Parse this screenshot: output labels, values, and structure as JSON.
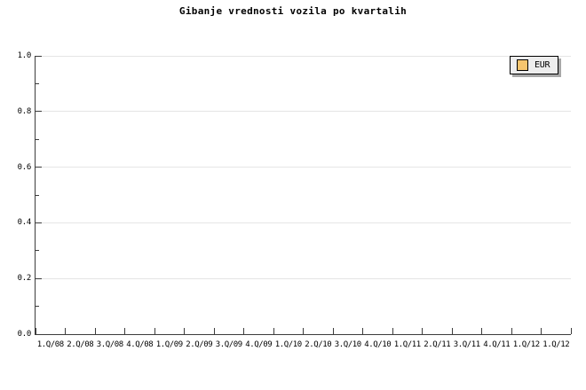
{
  "title": "Gibanje vrednosti vozila po kvartalih",
  "legend": {
    "label": "EUR",
    "swatch_color": "#f6c56e",
    "background": "#ededed",
    "shadow_color": "#a8a8a8",
    "position": "top-right"
  },
  "colors": {
    "background": "#ffffff",
    "axis": "#3c3c3c",
    "grid": "#e5e5e5",
    "text": "#000000"
  },
  "y_axis": {
    "min": 0,
    "max": 1,
    "major_step": 0.2,
    "minor_step": 0.1,
    "tick_labels": [
      "0.0",
      "0.2",
      "0.4",
      "0.6",
      "0.8",
      "1.0"
    ]
  },
  "x_axis": {
    "labels": [
      "1.Q/08",
      "2.Q/08",
      "3.Q/08",
      "4.Q/08",
      "1.Q/09",
      "2.Q/09",
      "3.Q/09",
      "4.Q/09",
      "1.Q/10",
      "2.Q/10",
      "3.Q/10",
      "4.Q/10",
      "1.Q/11",
      "2.Q/11",
      "3.Q/11",
      "4.Q/11",
      "1.Q/12",
      "1.Q/12"
    ]
  },
  "chart_data": {
    "type": "bar",
    "title": "Gibanje vrednosti vozila po kvartalih",
    "categories": [
      "1.Q/08",
      "2.Q/08",
      "3.Q/08",
      "4.Q/08",
      "1.Q/09",
      "2.Q/09",
      "3.Q/09",
      "4.Q/09",
      "1.Q/10",
      "2.Q/10",
      "3.Q/10",
      "4.Q/10",
      "1.Q/11",
      "2.Q/11",
      "3.Q/11",
      "4.Q/11",
      "1.Q/12",
      "1.Q/12"
    ],
    "series": [
      {
        "name": "EUR",
        "color": "#f6c56e",
        "values": []
      }
    ],
    "xlabel": "",
    "ylabel": "",
    "ylim": [
      0,
      1
    ],
    "y_ticks": [
      0.0,
      0.2,
      0.4,
      0.6,
      0.8,
      1.0
    ],
    "grid": "horizontal",
    "legend_position": "top-right",
    "plot_empty": true
  }
}
